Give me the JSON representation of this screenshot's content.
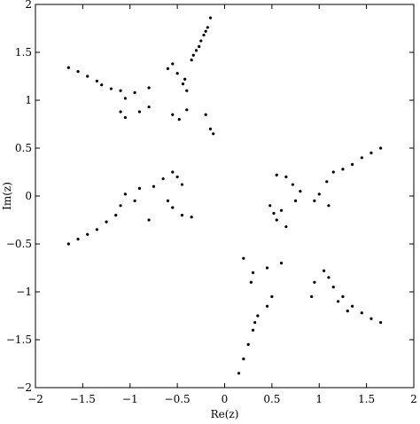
{
  "chart_data": {
    "type": "scatter",
    "title": "",
    "xlabel": "Re(z)",
    "ylabel": "Im(z)",
    "xlim": [
      -2,
      2
    ],
    "ylim": [
      -2,
      2
    ],
    "xticks": [
      -2,
      -1.5,
      -1,
      -0.5,
      0,
      0.5,
      1,
      1.5,
      2
    ],
    "yticks": [
      -2,
      -1.5,
      -1,
      -0.5,
      0,
      0.5,
      1,
      1.5,
      2
    ],
    "xtick_labels": [
      "−2",
      "−1.5",
      "−1",
      "−0.5",
      "0",
      "0.5",
      "1",
      "1.5",
      "2"
    ],
    "ytick_labels": [
      "−2",
      "−1.5",
      "−1",
      "−0.5",
      "0",
      "0.5",
      "1",
      "1.5",
      "2"
    ],
    "grid": false,
    "legend": "none",
    "marker_color": "#000000",
    "series": [
      {
        "points": [
          [
            -0.15,
            1.86
          ],
          [
            -0.18,
            1.76
          ],
          [
            -0.22,
            1.68
          ],
          [
            -0.2,
            1.72
          ],
          [
            -0.25,
            1.62
          ],
          [
            -0.3,
            1.52
          ],
          [
            -0.27,
            1.56
          ],
          [
            -0.35,
            1.42
          ],
          [
            -0.33,
            1.47
          ],
          [
            -0.42,
            1.22
          ],
          [
            -0.44,
            1.17
          ],
          [
            -0.5,
            1.28
          ],
          [
            -0.55,
            1.38
          ],
          [
            -0.6,
            1.33
          ],
          [
            -0.4,
            1.1
          ],
          [
            -1.65,
            1.34
          ],
          [
            -1.55,
            1.3
          ],
          [
            -1.45,
            1.25
          ],
          [
            -1.35,
            1.2
          ],
          [
            -1.3,
            1.16
          ],
          [
            -1.2,
            1.12
          ],
          [
            -1.1,
            1.1
          ],
          [
            -0.95,
            1.08
          ],
          [
            -1.05,
            1.02
          ],
          [
            -0.8,
            1.13
          ],
          [
            -1.1,
            0.88
          ],
          [
            -1.05,
            0.82
          ],
          [
            -0.9,
            0.88
          ],
          [
            -0.8,
            0.93
          ],
          [
            -0.55,
            0.85
          ],
          [
            -0.48,
            0.8
          ],
          [
            -0.4,
            0.9
          ],
          [
            -0.2,
            0.85
          ],
          [
            -0.15,
            0.7
          ],
          [
            -0.12,
            0.65
          ],
          [
            -1.65,
            -0.5
          ],
          [
            -1.55,
            -0.45
          ],
          [
            -1.45,
            -0.4
          ],
          [
            -1.35,
            -0.35
          ],
          [
            -1.25,
            -0.27
          ],
          [
            -1.15,
            -0.2
          ],
          [
            -1.1,
            -0.1
          ],
          [
            -1.05,
            0.02
          ],
          [
            -0.95,
            -0.05
          ],
          [
            -0.9,
            0.08
          ],
          [
            -0.75,
            0.1
          ],
          [
            -0.65,
            0.18
          ],
          [
            -0.55,
            0.25
          ],
          [
            -0.5,
            0.2
          ],
          [
            -0.45,
            0.12
          ],
          [
            -0.6,
            -0.05
          ],
          [
            -0.55,
            -0.12
          ],
          [
            -0.45,
            -0.2
          ],
          [
            -0.35,
            -0.22
          ],
          [
            -0.8,
            -0.25
          ],
          [
            1.65,
            0.5
          ],
          [
            1.55,
            0.45
          ],
          [
            1.45,
            0.4
          ],
          [
            1.35,
            0.33
          ],
          [
            1.25,
            0.28
          ],
          [
            1.15,
            0.25
          ],
          [
            1.08,
            0.15
          ],
          [
            1.0,
            0.02
          ],
          [
            0.95,
            -0.05
          ],
          [
            1.1,
            -0.1
          ],
          [
            0.55,
            0.22
          ],
          [
            0.65,
            0.2
          ],
          [
            0.72,
            0.12
          ],
          [
            0.8,
            0.05
          ],
          [
            0.75,
            -0.05
          ],
          [
            0.6,
            -0.15
          ],
          [
            0.55,
            -0.25
          ],
          [
            0.65,
            -0.32
          ],
          [
            0.52,
            -0.18
          ],
          [
            0.48,
            -0.1
          ],
          [
            1.65,
            -1.32
          ],
          [
            1.55,
            -1.28
          ],
          [
            1.45,
            -1.22
          ],
          [
            1.35,
            -1.15
          ],
          [
            1.25,
            -1.05
          ],
          [
            1.15,
            -0.95
          ],
          [
            1.1,
            -0.85
          ],
          [
            1.05,
            -0.78
          ],
          [
            0.95,
            -0.9
          ],
          [
            0.92,
            -1.05
          ],
          [
            1.2,
            -1.1
          ],
          [
            1.3,
            -1.2
          ],
          [
            0.6,
            -0.7
          ],
          [
            0.45,
            -0.75
          ],
          [
            0.3,
            -0.8
          ],
          [
            0.2,
            -0.65
          ],
          [
            0.28,
            -0.9
          ],
          [
            0.5,
            -1.05
          ],
          [
            0.45,
            -1.15
          ],
          [
            0.35,
            -1.25
          ],
          [
            0.3,
            -1.4
          ],
          [
            0.25,
            -1.55
          ],
          [
            0.2,
            -1.7
          ],
          [
            0.15,
            -1.85
          ],
          [
            0.32,
            -1.32
          ]
        ]
      }
    ]
  }
}
